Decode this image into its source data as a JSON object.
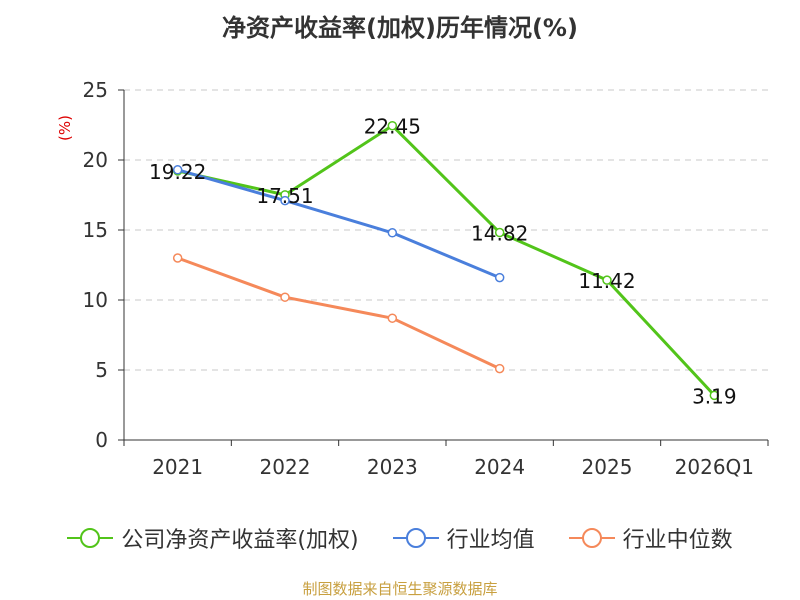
{
  "chart_data": {
    "type": "line",
    "title": "净资产收益率(加权)历年情况(%)",
    "ylabel": "(%)",
    "xlabel": "",
    "ylim": [
      0,
      25
    ],
    "yticks": [
      0,
      5,
      10,
      15,
      20,
      25
    ],
    "grid": true,
    "legend_position": "bottom",
    "categories": [
      "2021",
      "2022",
      "2023",
      "2024",
      "2025",
      "2026Q1"
    ],
    "series": [
      {
        "name": "公司净资产收益率(加权)",
        "color": "#52c41a",
        "values": [
          19.22,
          17.51,
          22.45,
          14.82,
          11.42,
          3.19
        ],
        "labels": [
          "19.22",
          "17.51",
          "22.45",
          "14.82",
          "11.42",
          "3.19"
        ]
      },
      {
        "name": "行业均值",
        "color": "#4a7fdc",
        "values": [
          19.3,
          17.1,
          14.8,
          11.6,
          null,
          null
        ]
      },
      {
        "name": "行业中位数",
        "color": "#f5895a",
        "values": [
          13.0,
          10.2,
          8.7,
          5.1,
          null,
          null
        ]
      }
    ],
    "source": "制图数据来自恒生聚源数据库"
  }
}
